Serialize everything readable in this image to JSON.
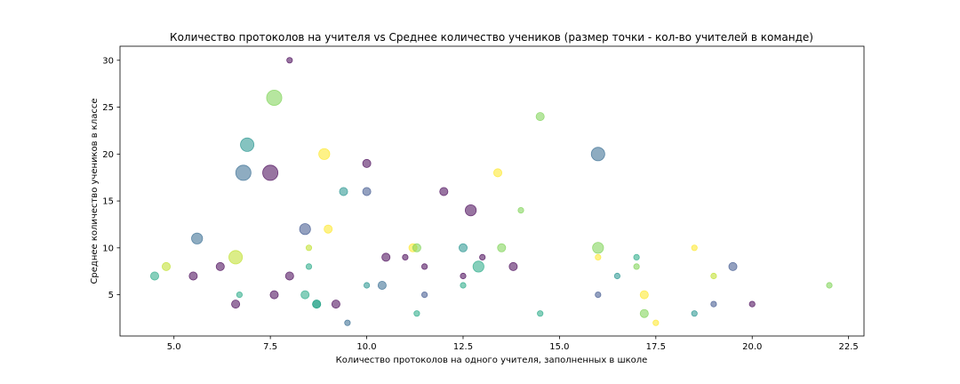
{
  "chart_data": {
    "type": "scatter",
    "title": "Количество протоколов на учителя vs Среднее количество учеников (размер точки - кол-во учителей в команде)",
    "xlabel": "Количество протоколов на одного учителя, заполненных в школе",
    "ylabel": "Среднее количество учеников в классе",
    "xlim": [
      3.6,
      22.9
    ],
    "ylim": [
      0.6,
      31.5
    ],
    "xticks": [
      5.0,
      7.5,
      10.0,
      12.5,
      15.0,
      17.5,
      20.0,
      22.5
    ],
    "xtick_labels": [
      "5.0",
      "7.5",
      "10.0",
      "12.5",
      "15.0",
      "17.5",
      "20.0",
      "22.5"
    ],
    "yticks": [
      5,
      10,
      15,
      20,
      25,
      30
    ],
    "ytick_labels": [
      "5",
      "10",
      "15",
      "20",
      "25",
      "30"
    ],
    "colormap": "viridis",
    "alpha": 0.55,
    "grid": false,
    "legend": "none",
    "points": [
      {
        "x": 8.0,
        "y": 30,
        "size": 1,
        "color": "#440154"
      },
      {
        "x": 7.6,
        "y": 26,
        "size": 5,
        "color": "#7ad151"
      },
      {
        "x": 14.5,
        "y": 24,
        "size": 2,
        "color": "#7ad151"
      },
      {
        "x": 6.9,
        "y": 21,
        "size": 4,
        "color": "#21918c"
      },
      {
        "x": 16.0,
        "y": 20,
        "size": 4,
        "color": "#31688e"
      },
      {
        "x": 8.9,
        "y": 20,
        "size": 3,
        "color": "#fde725"
      },
      {
        "x": 10.0,
        "y": 19,
        "size": 2,
        "color": "#440154"
      },
      {
        "x": 6.8,
        "y": 18,
        "size": 5,
        "color": "#31688e"
      },
      {
        "x": 7.5,
        "y": 18,
        "size": 5,
        "color": "#440154"
      },
      {
        "x": 13.4,
        "y": 18,
        "size": 2,
        "color": "#fde725"
      },
      {
        "x": 9.4,
        "y": 16,
        "size": 2,
        "color": "#21918c"
      },
      {
        "x": 10.0,
        "y": 16,
        "size": 2,
        "color": "#3b528b"
      },
      {
        "x": 12.0,
        "y": 16,
        "size": 2,
        "color": "#440154"
      },
      {
        "x": 12.7,
        "y": 14,
        "size": 3,
        "color": "#440154"
      },
      {
        "x": 14.0,
        "y": 14,
        "size": 1,
        "color": "#7ad151"
      },
      {
        "x": 8.4,
        "y": 12,
        "size": 3,
        "color": "#3b528b"
      },
      {
        "x": 9.0,
        "y": 12,
        "size": 2,
        "color": "#fde725"
      },
      {
        "x": 5.6,
        "y": 11,
        "size": 3,
        "color": "#31688e"
      },
      {
        "x": 8.5,
        "y": 10,
        "size": 1,
        "color": "#bddf26"
      },
      {
        "x": 11.2,
        "y": 10,
        "size": 2,
        "color": "#fde725"
      },
      {
        "x": 11.3,
        "y": 10,
        "size": 2,
        "color": "#7ad151"
      },
      {
        "x": 12.5,
        "y": 10,
        "size": 2,
        "color": "#21918c"
      },
      {
        "x": 13.5,
        "y": 10,
        "size": 2,
        "color": "#7ad151"
      },
      {
        "x": 16.0,
        "y": 10,
        "size": 3,
        "color": "#7ad151"
      },
      {
        "x": 18.5,
        "y": 10,
        "size": 1,
        "color": "#fde725"
      },
      {
        "x": 6.6,
        "y": 9,
        "size": 4,
        "color": "#bddf26"
      },
      {
        "x": 10.5,
        "y": 9,
        "size": 2,
        "color": "#440154"
      },
      {
        "x": 11.0,
        "y": 9,
        "size": 1,
        "color": "#440154"
      },
      {
        "x": 13.0,
        "y": 9,
        "size": 1,
        "color": "#440154"
      },
      {
        "x": 16.0,
        "y": 9,
        "size": 1,
        "color": "#fde725"
      },
      {
        "x": 17.0,
        "y": 9,
        "size": 1,
        "color": "#22a884"
      },
      {
        "x": 4.8,
        "y": 8,
        "size": 2,
        "color": "#bddf26"
      },
      {
        "x": 6.2,
        "y": 8,
        "size": 2,
        "color": "#440154"
      },
      {
        "x": 8.5,
        "y": 8,
        "size": 1,
        "color": "#22a884"
      },
      {
        "x": 11.5,
        "y": 8,
        "size": 1,
        "color": "#440154"
      },
      {
        "x": 12.9,
        "y": 8,
        "size": 3,
        "color": "#22a884"
      },
      {
        "x": 13.8,
        "y": 8,
        "size": 2,
        "color": "#440154"
      },
      {
        "x": 17.0,
        "y": 8,
        "size": 1,
        "color": "#7ad151"
      },
      {
        "x": 19.5,
        "y": 8,
        "size": 2,
        "color": "#3b528b"
      },
      {
        "x": 4.5,
        "y": 7,
        "size": 2,
        "color": "#22a884"
      },
      {
        "x": 5.5,
        "y": 7,
        "size": 2,
        "color": "#440154"
      },
      {
        "x": 8.0,
        "y": 7,
        "size": 2,
        "color": "#440154"
      },
      {
        "x": 12.5,
        "y": 7,
        "size": 1,
        "color": "#440154"
      },
      {
        "x": 16.5,
        "y": 7,
        "size": 1,
        "color": "#21918c"
      },
      {
        "x": 19.0,
        "y": 7,
        "size": 1,
        "color": "#bddf26"
      },
      {
        "x": 10.0,
        "y": 6,
        "size": 1,
        "color": "#21918c"
      },
      {
        "x": 10.4,
        "y": 6,
        "size": 2,
        "color": "#31688e"
      },
      {
        "x": 12.5,
        "y": 6,
        "size": 1,
        "color": "#22a884"
      },
      {
        "x": 22.0,
        "y": 6,
        "size": 1,
        "color": "#7ad151"
      },
      {
        "x": 6.7,
        "y": 5,
        "size": 1,
        "color": "#22a884"
      },
      {
        "x": 7.6,
        "y": 5,
        "size": 2,
        "color": "#440154"
      },
      {
        "x": 8.4,
        "y": 5,
        "size": 2,
        "color": "#22a884"
      },
      {
        "x": 11.5,
        "y": 5,
        "size": 1,
        "color": "#3b528b"
      },
      {
        "x": 16.0,
        "y": 5,
        "size": 1,
        "color": "#3b528b"
      },
      {
        "x": 17.2,
        "y": 5,
        "size": 2,
        "color": "#fde725"
      },
      {
        "x": 6.6,
        "y": 4,
        "size": 2,
        "color": "#440154"
      },
      {
        "x": 8.7,
        "y": 4,
        "size": 2,
        "color": "#21918c"
      },
      {
        "x": 8.7,
        "y": 4,
        "size": 2,
        "color": "#22a884"
      },
      {
        "x": 9.2,
        "y": 4,
        "size": 2,
        "color": "#440154"
      },
      {
        "x": 19.0,
        "y": 4,
        "size": 1,
        "color": "#3b528b"
      },
      {
        "x": 20.0,
        "y": 4,
        "size": 1,
        "color": "#440154"
      },
      {
        "x": 11.3,
        "y": 3,
        "size": 1,
        "color": "#22a884"
      },
      {
        "x": 14.5,
        "y": 3,
        "size": 1,
        "color": "#22a884"
      },
      {
        "x": 17.2,
        "y": 3,
        "size": 2,
        "color": "#7ad151"
      },
      {
        "x": 18.5,
        "y": 3,
        "size": 1,
        "color": "#21918c"
      },
      {
        "x": 9.5,
        "y": 2,
        "size": 1,
        "color": "#31688e"
      },
      {
        "x": 17.5,
        "y": 2,
        "size": 1,
        "color": "#fde725"
      }
    ]
  }
}
